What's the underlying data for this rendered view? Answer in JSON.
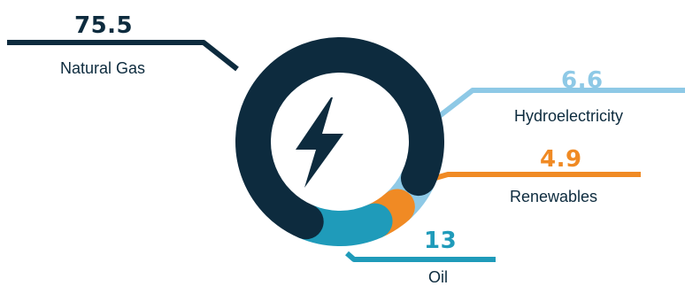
{
  "chart_data": {
    "type": "pie",
    "categories": [
      "Natural Gas",
      "Hydroelectricity",
      "Renewables",
      "Oil"
    ],
    "values": [
      75.5,
      6.6,
      4.9,
      13
    ],
    "value_labels": [
      "75.5",
      "6.6",
      "4.9",
      "13"
    ],
    "colors": [
      "#0d2b3e",
      "#8ec9e6",
      "#f08a24",
      "#1f9bba"
    ],
    "center_icon": "lightning-bolt-icon",
    "legend": "none"
  }
}
